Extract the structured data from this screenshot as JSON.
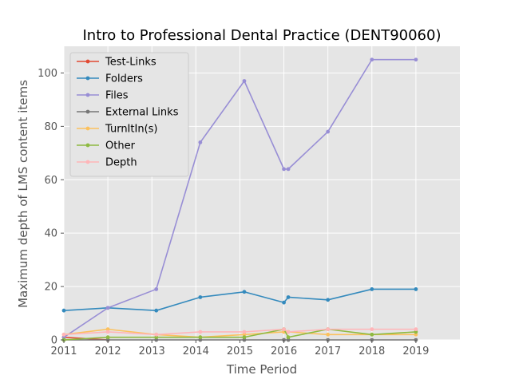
{
  "chart_data": {
    "type": "line",
    "title": "Intro to Professional Dental Practice (DENT90060)",
    "xlabel": "Time Period",
    "ylabel": "Maximum depth of LMS content items",
    "xlim": [
      2011,
      2020
    ],
    "ylim": [
      0,
      110
    ],
    "xticks": [
      "2011",
      "2012",
      "2013",
      "2014",
      "2015",
      "2016",
      "2017",
      "2018",
      "2019"
    ],
    "yticks": [
      "0",
      "20",
      "40",
      "60",
      "80",
      "100"
    ],
    "grid": true,
    "legend_position": "top-left",
    "background_color": "#e5e5e5",
    "series": [
      {
        "name": "Test-Links",
        "color": "#e24a33",
        "x": [
          2011.0,
          2012.0
        ],
        "y": [
          1,
          0
        ]
      },
      {
        "name": "Folders",
        "color": "#348abd",
        "x": [
          2011.0,
          2012.0,
          2013.1,
          2014.1,
          2015.1,
          2016.0,
          2016.1,
          2017.0,
          2018.0,
          2019.0
        ],
        "y": [
          11,
          12,
          11,
          16,
          18,
          14,
          16,
          15,
          19,
          19
        ]
      },
      {
        "name": "Files",
        "color": "#988ed5",
        "x": [
          2011.0,
          2012.0,
          2013.1,
          2014.1,
          2015.1,
          2016.0,
          2016.1,
          2017.0,
          2018.0,
          2019.0
        ],
        "y": [
          1,
          12,
          19,
          74,
          97,
          64,
          64,
          78,
          105,
          105
        ]
      },
      {
        "name": "External Links",
        "color": "#777777",
        "x": [
          2011.0,
          2012.0,
          2013.1,
          2014.1,
          2015.1,
          2016.0,
          2016.1,
          2017.0,
          2018.0,
          2019.0
        ],
        "y": [
          0,
          0,
          0,
          0,
          0,
          0,
          0,
          0,
          0,
          0
        ]
      },
      {
        "name": "TurnItIn(s)",
        "color": "#fbc15e",
        "x": [
          2011.0,
          2012.0,
          2013.1,
          2014.1,
          2015.1,
          2016.0,
          2016.1,
          2017.0,
          2018.0,
          2019.0
        ],
        "y": [
          2,
          4,
          2,
          1,
          2,
          3,
          3,
          2,
          2,
          2
        ]
      },
      {
        "name": "Other",
        "color": "#8eba42",
        "x": [
          2011.0,
          2012.0,
          2013.1,
          2014.1,
          2015.1,
          2016.0,
          2016.1,
          2017.0,
          2018.0,
          2019.0
        ],
        "y": [
          0,
          1,
          1,
          1,
          1,
          4,
          1,
          4,
          2,
          3
        ]
      },
      {
        "name": "Depth",
        "color": "#ffb5b8",
        "x": [
          2011.0,
          2012.0,
          2013.1,
          2014.1,
          2015.1,
          2016.0,
          2016.1,
          2017.0,
          2018.0,
          2019.0
        ],
        "y": [
          2,
          3,
          2,
          3,
          3,
          4,
          3,
          4,
          4,
          4
        ]
      }
    ]
  }
}
